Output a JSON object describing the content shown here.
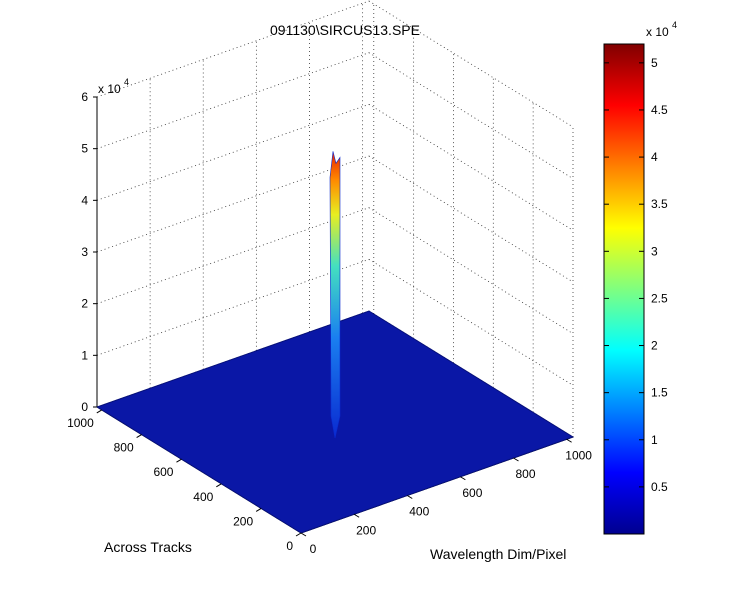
{
  "chart_data": {
    "type": "surface",
    "title": "091130\\SIRCUS13.SPE",
    "xlabel": "Wavelength Dim/Pixel",
    "ylabel": "Across Tracks",
    "zlabel": "",
    "x_ticks": [
      "0",
      "200",
      "400",
      "600",
      "800",
      "1000"
    ],
    "y_ticks": [
      "0",
      "200",
      "400",
      "600",
      "800",
      "1000"
    ],
    "z_ticks": [
      "0",
      "1",
      "2",
      "3",
      "4",
      "5",
      "6"
    ],
    "z_exponent": "x 10",
    "z_exponent_power": "4",
    "xlim": [
      0,
      1024
    ],
    "ylim": [
      0,
      1024
    ],
    "zlim": [
      0,
      60000
    ],
    "grid": true,
    "colormap": "jet",
    "background_level": 0,
    "peak": {
      "x": 512,
      "y": 512,
      "z_max": 52000
    },
    "colorbar": {
      "ticks": [
        "0.5",
        "1",
        "1.5",
        "2",
        "2.5",
        "3",
        "3.5",
        "4",
        "4.5",
        "5"
      ],
      "exponent": "x 10",
      "exponent_power": "4",
      "range": [
        0,
        52000
      ]
    }
  }
}
